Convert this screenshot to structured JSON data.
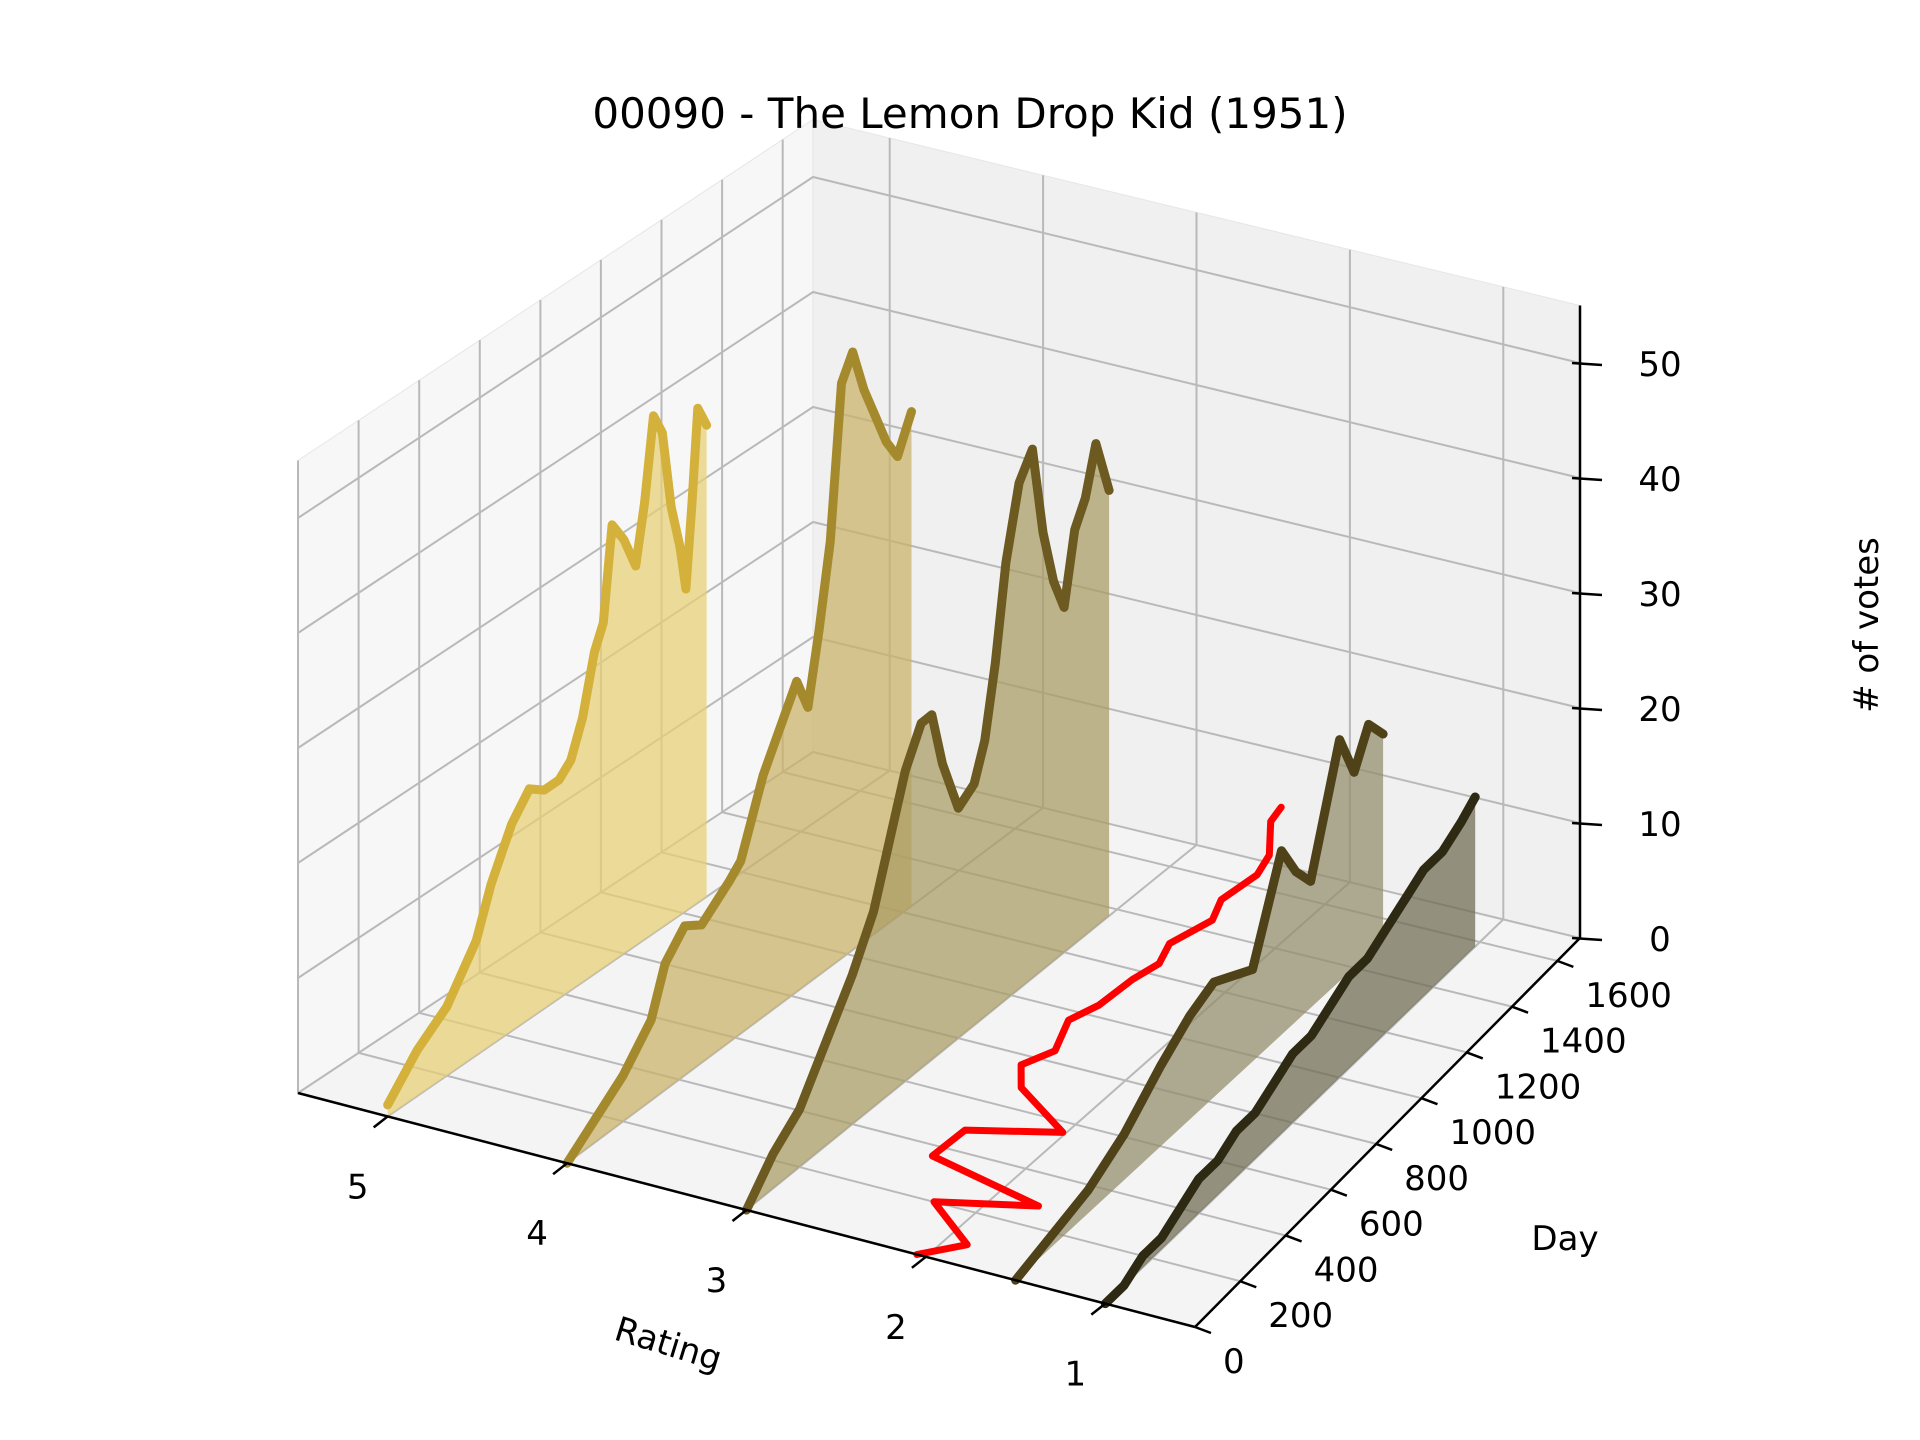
{
  "chart_data": {
    "type": "line",
    "projection": "3d",
    "title": "00090 - The Lemon Drop Kid (1951)",
    "xlabel": "Rating",
    "ylabel": "Day",
    "zlabel": "# of votes",
    "x_ticks": [
      1,
      2,
      3,
      4,
      5
    ],
    "x_tick_labels": [
      "1",
      "2",
      "3",
      "4",
      "5"
    ],
    "y_ticks": [
      0,
      200,
      400,
      600,
      800,
      1000,
      1200,
      1400,
      1600
    ],
    "y_tick_labels": [
      "0",
      "200",
      "400",
      "600",
      "800",
      "1000",
      "1200",
      "1400",
      "1600"
    ],
    "z_ticks": [
      0,
      10,
      20,
      30,
      40,
      50
    ],
    "z_tick_labels": [
      "0",
      "10",
      "20",
      "30",
      "40",
      "50"
    ],
    "xlim": [
      0.5,
      5.5
    ],
    "ylim": [
      0,
      1700
    ],
    "zlim": [
      0,
      55
    ],
    "grid": true,
    "series": [
      {
        "rating": 5,
        "color": "#D4B13A",
        "fill": "#E7CF75",
        "x": [
          0,
          100,
          200,
          300,
          350,
          420,
          480,
          530,
          580,
          620,
          660,
          700,
          730,
          760,
          800,
          840,
          870,
          900,
          930,
          960,
          990,
          1010,
          1030,
          1050,
          1080
        ],
        "y": [
          1,
          4,
          6,
          10,
          14,
          18,
          20,
          19,
          19,
          20,
          23,
          28,
          30,
          38,
          36,
          33,
          38,
          45,
          43,
          36,
          32,
          28,
          35,
          43,
          41
        ]
      },
      {
        "rating": 4,
        "color": "#A58A2D",
        "fill": "#C9B265",
        "x": [
          0,
          100,
          200,
          300,
          350,
          420,
          480,
          530,
          580,
          620,
          660,
          700,
          740,
          780,
          820,
          860,
          900,
          940,
          980,
          1020,
          1060,
          1100,
          1140,
          1180,
          1230
        ],
        "y": [
          0,
          2,
          4,
          7,
          11,
          13,
          12,
          13,
          14,
          15,
          18,
          21,
          23,
          25,
          27,
          24,
          30,
          37,
          50,
          52,
          48,
          45,
          42,
          40,
          43
        ]
      },
      {
        "rating": 3,
        "color": "#6C5A20",
        "fill": "#A99B63",
        "x": [
          0,
          100,
          200,
          300,
          400,
          480,
          540,
          600,
          660,
          700,
          740,
          800,
          860,
          900,
          940,
          980,
          1030,
          1080,
          1120,
          1160,
          1200,
          1240,
          1280,
          1320,
          1370
        ],
        "y": [
          0,
          3,
          5,
          9,
          13,
          17,
          22,
          27,
          30,
          30,
          25,
          20,
          21,
          24,
          30,
          38,
          44,
          46,
          38,
          33,
          30,
          36,
          38,
          42,
          37
        ]
      },
      {
        "rating": 2,
        "color": "#FF0000",
        "fill": "none",
        "x": [
          0,
          80,
          160,
          240,
          320,
          400,
          480,
          560,
          640,
          720,
          800,
          880,
          960,
          1040,
          1120,
          1200,
          1280,
          1360,
          1440,
          1520,
          1580
        ],
        "y": [
          0,
          0,
          1,
          1,
          1,
          2,
          2,
          3,
          3,
          3,
          4,
          4,
          5,
          5,
          5,
          6,
          6,
          7,
          7,
          8,
          8
        ],
        "rating_offsets": [
          0.05,
          -0.12,
          0.18,
          -0.3,
          0.42,
          0.35,
          -0.1,
          0.26,
          0.38,
          0.3,
          0.34,
          0.28,
          0.2,
          0.16,
          0.22,
          0.08,
          0.15,
          0.05,
          0.1,
          0.22,
          0.25
        ]
      },
      {
        "rating": 1,
        "color": "#2E2912",
        "fill": "#6E6950",
        "x": [
          0,
          80,
          160,
          240,
          320,
          400,
          480,
          560,
          640,
          720,
          800,
          880,
          960,
          1040,
          1120,
          1200,
          1280,
          1360,
          1440,
          1520,
          1580
        ],
        "y": [
          0,
          0,
          1,
          1,
          2,
          3,
          3,
          4,
          4,
          5,
          6,
          6,
          7,
          8,
          8,
          9,
          10,
          11,
          11,
          12,
          13
        ]
      }
    ],
    "extra_series": [
      {
        "rating": 1.5,
        "color": "#4F4218",
        "fill": "#928A6A",
        "x": [
          0,
          150,
          300,
          450,
          600,
          720,
          820,
          900,
          980,
          1040,
          1100,
          1160,
          1220,
          1280,
          1340,
          1400,
          1460,
          1520
        ],
        "y": [
          0,
          1,
          2,
          4,
          7,
          9,
          10,
          9,
          8,
          12,
          16,
          13,
          11,
          16,
          21,
          17,
          20,
          18
        ]
      }
    ]
  }
}
